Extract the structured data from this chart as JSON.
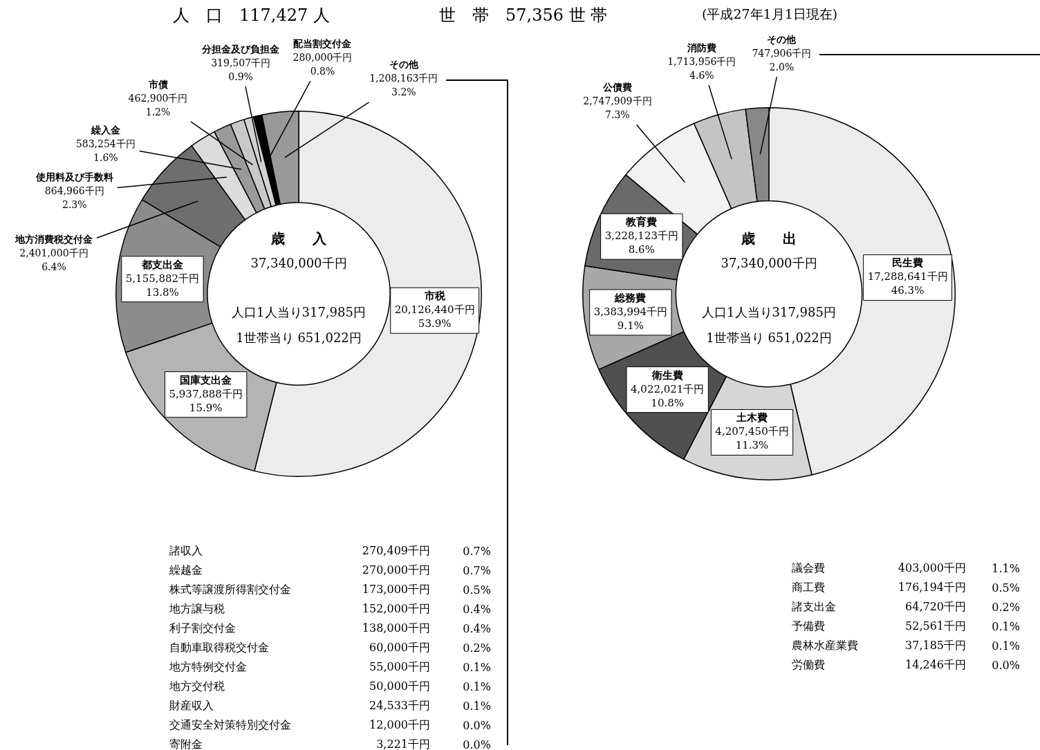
{
  "chart_data": [
    {
      "type": "other",
      "title": "人　口　117,427 人",
      "annotations": [
        "世　帯　57,356 世 帯",
        "(平成27年1月1日現在)"
      ]
    },
    {
      "type": "donut",
      "title": "歳　　入",
      "annotations": [
        "37,340,000千円",
        "人口1人当り317,985円",
        "1世帯当り 651,022円"
      ],
      "categories": [
        "市税",
        "国庫支出金",
        "都支出金",
        "地方消費税交付金",
        "使用料及び手数料",
        "繰入金",
        "市債",
        "分担金及び負担金",
        "配当割交付金",
        "その他"
      ],
      "values": [
        20126440,
        5937888,
        5155882,
        2401000,
        864966,
        583254,
        462900,
        319507,
        280000,
        1208163
      ],
      "colors": [
        "#ececec",
        "#b4b4b4",
        "#8c8c8c",
        "#6e6e6e",
        "#dcdcdc",
        "#9a9a9a",
        "#c8c8c8",
        "#d2d2d2",
        "#000000",
        "#999999"
      ],
      "value_labels": [
        "20,126,440千円\n53.9%",
        "5,937,888千円\n15.9%",
        "5,155,882千円\n13.8%",
        "2,401,000千円\n6.4%",
        "864,966千円\n2.3%",
        "583,254千円\n1.6%",
        "462,900千円\n1.2%",
        "319,507千円\n0.9%",
        "280,000千円\n0.8%",
        "1,208,163千円\n3.2%"
      ]
    },
    {
      "type": "donut",
      "title": "歳　　出",
      "annotations": [
        "37,340,000千円",
        "人口1人当り317,985円",
        "1世帯当り 651,022円"
      ],
      "categories": [
        "民生費",
        "土木費",
        "衛生費",
        "総務費",
        "教育費",
        "公債費",
        "消防費",
        "その他"
      ],
      "values": [
        17288641,
        4207450,
        4022021,
        3383994,
        3228123,
        2747909,
        1713956,
        747906
      ],
      "colors": [
        "#ececec",
        "#d6d6d6",
        "#505050",
        "#a8a8a8",
        "#6a6a6a",
        "#f2f2f2",
        "#c4c4c4",
        "#888888"
      ],
      "value_labels": [
        "17,288,641千円\n46.3%",
        "4,207,450千円\n11.3%",
        "4,022,021千円\n10.8%",
        "3,383,994千円\n9.1%",
        "3,228,123千円\n8.6%",
        "2,747,909千円\n7.3%",
        "1,713,956千円\n4.6%",
        "747,906千円\n2.0%"
      ]
    },
    {
      "type": "other",
      "annotations": [
        "諸収入 270,409千円 0.7%",
        "繰越金 270,000千円 0.7%",
        "株式等譲渡所得割交付金 173,000千円 0.5%",
        "地方譲与税 152,000千円 0.4%",
        "利子割交付金 138,000千円 0.4%",
        "自動車取得税交付金 60,000千円 0.2%",
        "地方特例交付金 55,000千円 0.1%",
        "地方交付税 50,000千円 0.1%",
        "財産収入 24,533千円 0.1%",
        "交通安全対策特別交付金 12,000千円 0.0%",
        "寄附金 3,221千円 0.0%"
      ]
    },
    {
      "type": "other",
      "annotations": [
        "議会費 403,000千円 1.1%",
        "商工費 176,194千円 0.5%",
        "諸支出金 64,720千円 0.2%",
        "予備費 52,561千円 0.1%",
        "農林水産業費 37,185千円 0.1%",
        "労働費 14,246千円 0.0%"
      ]
    }
  ]
}
